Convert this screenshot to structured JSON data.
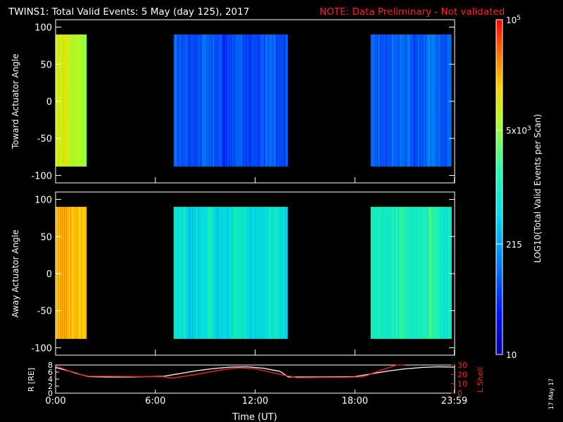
{
  "chart_data": [
    {
      "type": "heatmap",
      "name": "toward",
      "title": "TWINS1: Total Valid Events:  5 May (day 125), 2017",
      "note": "NOTE: Data Preliminary - Not validated",
      "ylabel": "Toward Actuator Angle",
      "xlim": [
        0,
        24
      ],
      "ylim": [
        -110,
        110
      ],
      "yticks": [
        "100",
        "50",
        "0",
        "-50",
        "-100"
      ],
      "ytick_values": [
        100,
        50,
        0,
        -50,
        -100
      ],
      "angle_range": [
        -88,
        90
      ],
      "blocks": [
        {
          "start": 0.0,
          "end": 1.85,
          "log_level": 0.72
        },
        {
          "start": 7.1,
          "end": 13.95,
          "log_level": 0.22
        },
        {
          "start": 18.95,
          "end": 23.8,
          "log_level": 0.24
        }
      ]
    },
    {
      "type": "heatmap",
      "name": "away",
      "ylabel": "Away Actuator Angle",
      "xlim": [
        0,
        24
      ],
      "ylim": [
        -110,
        110
      ],
      "yticks": [
        "100",
        "50",
        "0",
        "-50",
        "-100"
      ],
      "ytick_values": [
        100,
        50,
        0,
        -50,
        -100
      ],
      "angle_range": [
        -88,
        90
      ],
      "blocks": [
        {
          "start": 0.0,
          "end": 1.85,
          "log_level": 0.82
        },
        {
          "start": 7.1,
          "end": 13.95,
          "log_level": 0.45
        },
        {
          "start": 18.95,
          "end": 23.8,
          "log_level": 0.52
        }
      ]
    },
    {
      "type": "line",
      "name": "orbit",
      "xlabel": "Time (UT)",
      "ylabel": "R [RE]",
      "y2label": "L Shell",
      "ylim": [
        0,
        8
      ],
      "y2lim": [
        0,
        30
      ],
      "yticks": [
        "8",
        "6",
        "4",
        "2",
        "0"
      ],
      "ytick_values": [
        8,
        6,
        4,
        2,
        0
      ],
      "y2ticks": [
        "30",
        "20",
        "10",
        "0"
      ],
      "y2tick_values": [
        30,
        20,
        10,
        0
      ],
      "xticks": [
        "0:00",
        "6:00",
        "12:00",
        "18:00",
        "23:59"
      ],
      "xtick_values": [
        0,
        6,
        12,
        18,
        23.98
      ],
      "series": [
        {
          "name": "R",
          "color": "#ffffff",
          "x": [
            0,
            0.8,
            1.5,
            2.0,
            3.0,
            4.5,
            6.5,
            7.5,
            8.5,
            9.5,
            10.5,
            11.5,
            12.5,
            13.5,
            14.0,
            16.0,
            18.0,
            19.0,
            20.0,
            21.0,
            22.0,
            23.0,
            24.0
          ],
          "y": [
            7.3,
            6.3,
            5.3,
            4.7,
            4.6,
            4.6,
            4.8,
            5.6,
            6.4,
            7.0,
            7.4,
            7.5,
            7.1,
            6.2,
            4.6,
            4.6,
            4.7,
            5.5,
            6.3,
            6.9,
            7.3,
            7.5,
            7.4
          ]
        },
        {
          "name": "L Shell",
          "color": "#ff2020",
          "x": [
            0,
            1.2,
            2.0,
            3.0,
            6.5,
            7.0,
            8.5,
            10.0,
            11.0,
            12.0,
            13.5,
            14.5,
            17.5,
            18.5,
            19.5,
            20.5,
            21.0
          ],
          "y": [
            29,
            21,
            18,
            18,
            17.5,
            16,
            20,
            25,
            27,
            26,
            20,
            16.5,
            17,
            17.5,
            24,
            30,
            30
          ]
        }
      ]
    }
  ],
  "colorbar": {
    "label": "LOG10(Total Valid Events per Scan)",
    "ticks": [
      {
        "text": "10",
        "sup": "5",
        "frac": 1.0
      },
      {
        "text": "5x10",
        "sup": "3",
        "frac": 0.67
      },
      {
        "text": "215",
        "sup": "",
        "frac": 0.33
      },
      {
        "text": "10",
        "sup": "",
        "frac": 0.0
      }
    ]
  },
  "colors": {
    "background": "#000000",
    "axis": "#ffffff",
    "note": "#ff2020",
    "r_line": "#ffffff",
    "lshell_line": "#ff2020"
  },
  "stamp": "17 May 17"
}
